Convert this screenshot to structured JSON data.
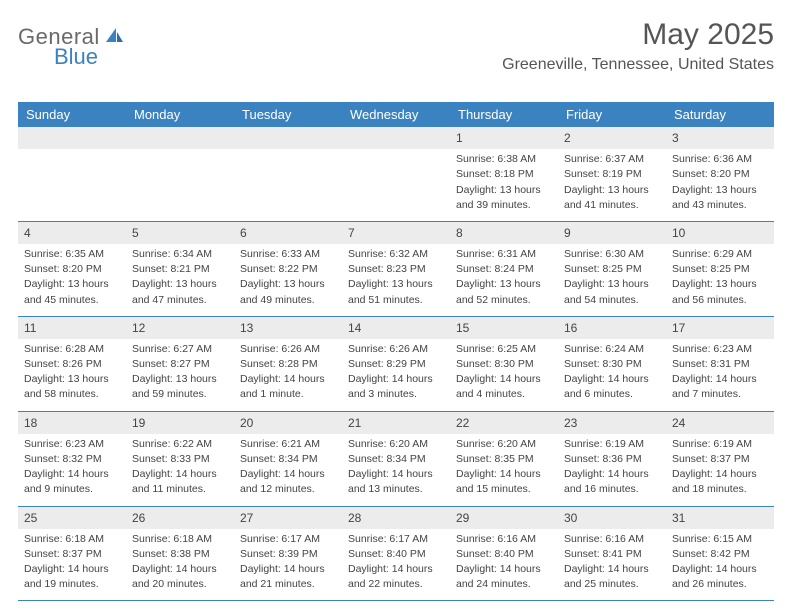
{
  "brand": {
    "part1": "General",
    "part2": "Blue"
  },
  "title": "May 2025",
  "location": "Greeneville, Tennessee, United States",
  "colors": {
    "header_bg": "#3b83c0",
    "header_text": "#ffffff",
    "daynum_bg": "#ececec",
    "rule": "#3b83c0",
    "body_text": "#444444",
    "logo_gray": "#6a6a6a",
    "logo_blue": "#3b83c0"
  },
  "weekdays": [
    "Sunday",
    "Monday",
    "Tuesday",
    "Wednesday",
    "Thursday",
    "Friday",
    "Saturday"
  ],
  "leading_blanks": 4,
  "days": [
    {
      "n": "1",
      "sr": "Sunrise: 6:38 AM",
      "ss": "Sunset: 8:18 PM",
      "dl1": "Daylight: 13 hours",
      "dl2": "and 39 minutes."
    },
    {
      "n": "2",
      "sr": "Sunrise: 6:37 AM",
      "ss": "Sunset: 8:19 PM",
      "dl1": "Daylight: 13 hours",
      "dl2": "and 41 minutes."
    },
    {
      "n": "3",
      "sr": "Sunrise: 6:36 AM",
      "ss": "Sunset: 8:20 PM",
      "dl1": "Daylight: 13 hours",
      "dl2": "and 43 minutes."
    },
    {
      "n": "4",
      "sr": "Sunrise: 6:35 AM",
      "ss": "Sunset: 8:20 PM",
      "dl1": "Daylight: 13 hours",
      "dl2": "and 45 minutes."
    },
    {
      "n": "5",
      "sr": "Sunrise: 6:34 AM",
      "ss": "Sunset: 8:21 PM",
      "dl1": "Daylight: 13 hours",
      "dl2": "and 47 minutes."
    },
    {
      "n": "6",
      "sr": "Sunrise: 6:33 AM",
      "ss": "Sunset: 8:22 PM",
      "dl1": "Daylight: 13 hours",
      "dl2": "and 49 minutes."
    },
    {
      "n": "7",
      "sr": "Sunrise: 6:32 AM",
      "ss": "Sunset: 8:23 PM",
      "dl1": "Daylight: 13 hours",
      "dl2": "and 51 minutes."
    },
    {
      "n": "8",
      "sr": "Sunrise: 6:31 AM",
      "ss": "Sunset: 8:24 PM",
      "dl1": "Daylight: 13 hours",
      "dl2": "and 52 minutes."
    },
    {
      "n": "9",
      "sr": "Sunrise: 6:30 AM",
      "ss": "Sunset: 8:25 PM",
      "dl1": "Daylight: 13 hours",
      "dl2": "and 54 minutes."
    },
    {
      "n": "10",
      "sr": "Sunrise: 6:29 AM",
      "ss": "Sunset: 8:25 PM",
      "dl1": "Daylight: 13 hours",
      "dl2": "and 56 minutes."
    },
    {
      "n": "11",
      "sr": "Sunrise: 6:28 AM",
      "ss": "Sunset: 8:26 PM",
      "dl1": "Daylight: 13 hours",
      "dl2": "and 58 minutes."
    },
    {
      "n": "12",
      "sr": "Sunrise: 6:27 AM",
      "ss": "Sunset: 8:27 PM",
      "dl1": "Daylight: 13 hours",
      "dl2": "and 59 minutes."
    },
    {
      "n": "13",
      "sr": "Sunrise: 6:26 AM",
      "ss": "Sunset: 8:28 PM",
      "dl1": "Daylight: 14 hours",
      "dl2": "and 1 minute."
    },
    {
      "n": "14",
      "sr": "Sunrise: 6:26 AM",
      "ss": "Sunset: 8:29 PM",
      "dl1": "Daylight: 14 hours",
      "dl2": "and 3 minutes."
    },
    {
      "n": "15",
      "sr": "Sunrise: 6:25 AM",
      "ss": "Sunset: 8:30 PM",
      "dl1": "Daylight: 14 hours",
      "dl2": "and 4 minutes."
    },
    {
      "n": "16",
      "sr": "Sunrise: 6:24 AM",
      "ss": "Sunset: 8:30 PM",
      "dl1": "Daylight: 14 hours",
      "dl2": "and 6 minutes."
    },
    {
      "n": "17",
      "sr": "Sunrise: 6:23 AM",
      "ss": "Sunset: 8:31 PM",
      "dl1": "Daylight: 14 hours",
      "dl2": "and 7 minutes."
    },
    {
      "n": "18",
      "sr": "Sunrise: 6:23 AM",
      "ss": "Sunset: 8:32 PM",
      "dl1": "Daylight: 14 hours",
      "dl2": "and 9 minutes."
    },
    {
      "n": "19",
      "sr": "Sunrise: 6:22 AM",
      "ss": "Sunset: 8:33 PM",
      "dl1": "Daylight: 14 hours",
      "dl2": "and 11 minutes."
    },
    {
      "n": "20",
      "sr": "Sunrise: 6:21 AM",
      "ss": "Sunset: 8:34 PM",
      "dl1": "Daylight: 14 hours",
      "dl2": "and 12 minutes."
    },
    {
      "n": "21",
      "sr": "Sunrise: 6:20 AM",
      "ss": "Sunset: 8:34 PM",
      "dl1": "Daylight: 14 hours",
      "dl2": "and 13 minutes."
    },
    {
      "n": "22",
      "sr": "Sunrise: 6:20 AM",
      "ss": "Sunset: 8:35 PM",
      "dl1": "Daylight: 14 hours",
      "dl2": "and 15 minutes."
    },
    {
      "n": "23",
      "sr": "Sunrise: 6:19 AM",
      "ss": "Sunset: 8:36 PM",
      "dl1": "Daylight: 14 hours",
      "dl2": "and 16 minutes."
    },
    {
      "n": "24",
      "sr": "Sunrise: 6:19 AM",
      "ss": "Sunset: 8:37 PM",
      "dl1": "Daylight: 14 hours",
      "dl2": "and 18 minutes."
    },
    {
      "n": "25",
      "sr": "Sunrise: 6:18 AM",
      "ss": "Sunset: 8:37 PM",
      "dl1": "Daylight: 14 hours",
      "dl2": "and 19 minutes."
    },
    {
      "n": "26",
      "sr": "Sunrise: 6:18 AM",
      "ss": "Sunset: 8:38 PM",
      "dl1": "Daylight: 14 hours",
      "dl2": "and 20 minutes."
    },
    {
      "n": "27",
      "sr": "Sunrise: 6:17 AM",
      "ss": "Sunset: 8:39 PM",
      "dl1": "Daylight: 14 hours",
      "dl2": "and 21 minutes."
    },
    {
      "n": "28",
      "sr": "Sunrise: 6:17 AM",
      "ss": "Sunset: 8:40 PM",
      "dl1": "Daylight: 14 hours",
      "dl2": "and 22 minutes."
    },
    {
      "n": "29",
      "sr": "Sunrise: 6:16 AM",
      "ss": "Sunset: 8:40 PM",
      "dl1": "Daylight: 14 hours",
      "dl2": "and 24 minutes."
    },
    {
      "n": "30",
      "sr": "Sunrise: 6:16 AM",
      "ss": "Sunset: 8:41 PM",
      "dl1": "Daylight: 14 hours",
      "dl2": "and 25 minutes."
    },
    {
      "n": "31",
      "sr": "Sunrise: 6:15 AM",
      "ss": "Sunset: 8:42 PM",
      "dl1": "Daylight: 14 hours",
      "dl2": "and 26 minutes."
    }
  ]
}
